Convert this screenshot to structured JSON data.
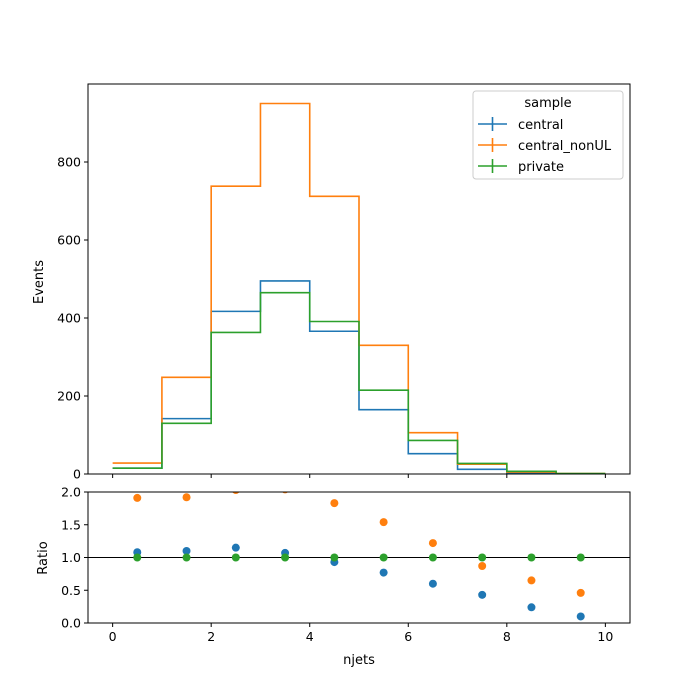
{
  "chart_data": [
    {
      "type": "line",
      "drawstyle": "steps",
      "panel": "main",
      "ylabel": "Events",
      "xlim": [
        -0.5,
        10.5
      ],
      "ylim": [
        0,
        1000
      ],
      "yticks": [
        0,
        200,
        400,
        600,
        800
      ],
      "bin_edges": [
        0,
        1,
        2,
        3,
        4,
        5,
        6,
        7,
        8,
        9,
        10
      ],
      "legend": {
        "title": "sample",
        "placement": "top-right"
      },
      "series": [
        {
          "name": "central",
          "color": "#1f77b4",
          "values": [
            15,
            142,
            417,
            495,
            366,
            165,
            52,
            12,
            2,
            0
          ]
        },
        {
          "name": "central_nonUL",
          "color": "#ff7f0e",
          "values": [
            28,
            248,
            738,
            950,
            712,
            330,
            106,
            25,
            5,
            1
          ]
        },
        {
          "name": "private",
          "color": "#2ca02c",
          "values": [
            15,
            130,
            363,
            465,
            391,
            215,
            86,
            27,
            7,
            1
          ]
        }
      ]
    },
    {
      "type": "scatter",
      "panel": "ratio",
      "xlabel": "njets",
      "ylabel": "Ratio",
      "xlim": [
        -0.5,
        10.5
      ],
      "ylim": [
        0,
        2
      ],
      "xticks": [
        0,
        2,
        4,
        6,
        8,
        10
      ],
      "yticks": [
        0.0,
        0.5,
        1.0,
        1.5,
        2.0
      ],
      "ytick_labels": [
        "0.0",
        "0.5",
        "1.0",
        "1.5",
        "2.0"
      ],
      "reference_line": 1.0,
      "x": [
        0.5,
        1.5,
        2.5,
        3.5,
        4.5,
        5.5,
        6.5,
        7.5,
        8.5,
        9.5
      ],
      "series": [
        {
          "name": "central",
          "color": "#1f77b4",
          "values": [
            1.08,
            1.1,
            1.15,
            1.07,
            0.93,
            0.77,
            0.6,
            0.43,
            0.24,
            0.1
          ]
        },
        {
          "name": "central_nonUL",
          "color": "#ff7f0e",
          "values": [
            1.91,
            1.92,
            2.03,
            2.04,
            1.83,
            1.54,
            1.22,
            0.87,
            0.65,
            0.46
          ]
        },
        {
          "name": "private",
          "color": "#2ca02c",
          "values": [
            1.0,
            1.0,
            1.0,
            1.0,
            1.0,
            1.0,
            1.0,
            1.0,
            1.0,
            1.0
          ]
        }
      ]
    }
  ]
}
